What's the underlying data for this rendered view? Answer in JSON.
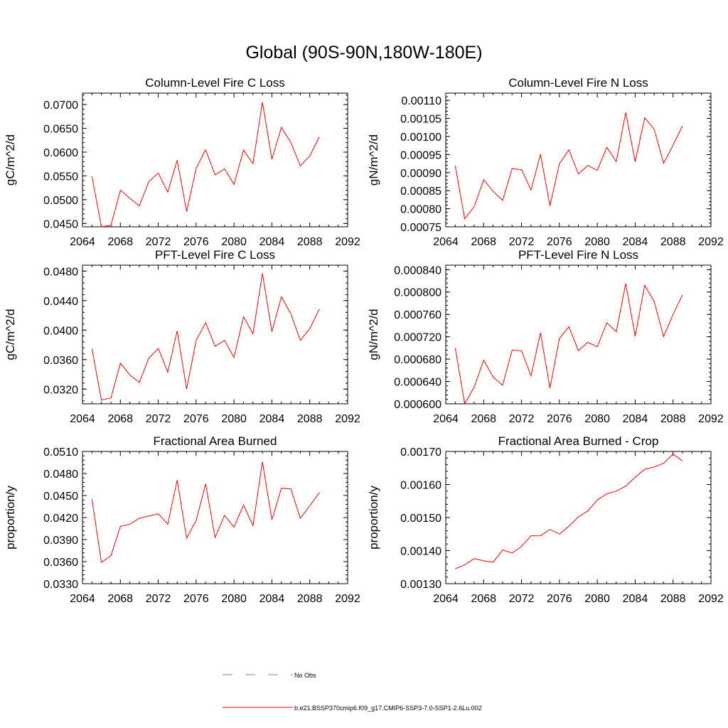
{
  "main_title": "Global (90S-90N,180W-180E)",
  "chart_data": [
    {
      "type": "line",
      "title": "Column-Level Fire C Loss",
      "xlabel": "",
      "ylabel": "gC/m^2/d",
      "xlim": [
        2064,
        2092
      ],
      "ylim": [
        0.0443,
        0.0724
      ],
      "xticks": [
        "2064",
        "2068",
        "2072",
        "2076",
        "2080",
        "2084",
        "2088",
        "2092"
      ],
      "yticks": [
        "0.0450",
        "0.0500",
        "0.0550",
        "0.0600",
        "0.0650",
        "0.0700"
      ],
      "x": [
        2065,
        2066,
        2067,
        2068,
        2069,
        2070,
        2071,
        2072,
        2073,
        2074,
        2075,
        2076,
        2077,
        2078,
        2079,
        2080,
        2081,
        2082,
        2083,
        2084,
        2085,
        2086,
        2087,
        2088,
        2089
      ],
      "series": [
        {
          "values": [
            0.0549,
            0.0443,
            0.0446,
            0.052,
            0.0503,
            0.0487,
            0.0538,
            0.0556,
            0.0516,
            0.0583,
            0.0475,
            0.0566,
            0.0605,
            0.0552,
            0.0565,
            0.0532,
            0.0604,
            0.0576,
            0.0705,
            0.0585,
            0.0652,
            0.062,
            0.0571,
            0.0592,
            0.0632
          ]
        }
      ]
    },
    {
      "type": "line",
      "title": "Column-Level Fire N Loss",
      "xlabel": "",
      "ylabel": "gN/m^2/d",
      "xlim": [
        2064,
        2092
      ],
      "ylim": [
        0.00075,
        0.00112
      ],
      "xticks": [
        "2064",
        "2068",
        "2072",
        "2076",
        "2080",
        "2084",
        "2088",
        "2092"
      ],
      "yticks": [
        "0.00075",
        "0.00080",
        "0.00085",
        "0.00090",
        "0.00095",
        "0.00100",
        "0.00105",
        "0.00110"
      ],
      "x": [
        2065,
        2066,
        2067,
        2068,
        2069,
        2070,
        2071,
        2072,
        2073,
        2074,
        2075,
        2076,
        2077,
        2078,
        2079,
        2080,
        2081,
        2082,
        2083,
        2084,
        2085,
        2086,
        2087,
        2088,
        2089
      ],
      "series": [
        {
          "values": [
            0.000919,
            0.000772,
            0.000806,
            0.00088,
            0.000848,
            0.000823,
            0.000911,
            0.000908,
            0.000852,
            0.000951,
            0.000808,
            0.000925,
            0.000963,
            0.000896,
            0.00092,
            0.000906,
            0.00097,
            0.00093,
            0.001066,
            0.00093,
            0.001052,
            0.00102,
            0.000926,
            0.000976,
            0.00103
          ]
        }
      ]
    },
    {
      "type": "line",
      "title": "PFT-Level Fire C Loss",
      "xlabel": "",
      "ylabel": "gC/m^2/d",
      "xlim": [
        2064,
        2092
      ],
      "ylim": [
        0.03,
        0.0488
      ],
      "xticks": [
        "2064",
        "2068",
        "2072",
        "2076",
        "2080",
        "2084",
        "2088",
        "2092"
      ],
      "yticks": [
        "0.0320",
        "0.0360",
        "0.0400",
        "0.0440",
        "0.0480"
      ],
      "x": [
        2065,
        2066,
        2067,
        2068,
        2069,
        2070,
        2071,
        2072,
        2073,
        2074,
        2075,
        2076,
        2077,
        2078,
        2079,
        2080,
        2081,
        2082,
        2083,
        2084,
        2085,
        2086,
        2087,
        2088,
        2089
      ],
      "series": [
        {
          "values": [
            0.0375,
            0.0305,
            0.0308,
            0.0355,
            0.0339,
            0.0329,
            0.0362,
            0.0375,
            0.0343,
            0.0399,
            0.032,
            0.0386,
            0.041,
            0.0378,
            0.0386,
            0.0363,
            0.0418,
            0.0395,
            0.0477,
            0.0398,
            0.0445,
            0.0422,
            0.0386,
            0.0402,
            0.0428
          ]
        }
      ]
    },
    {
      "type": "line",
      "title": "PFT-Level Fire N Loss",
      "xlabel": "",
      "ylabel": "gN/m^2/d",
      "xlim": [
        2064,
        2092
      ],
      "ylim": [
        0.0006,
        0.000848
      ],
      "xticks": [
        "2064",
        "2068",
        "2072",
        "2076",
        "2080",
        "2084",
        "2088",
        "2092"
      ],
      "yticks": [
        "0.000600",
        "0.000640",
        "0.000680",
        "0.000720",
        "0.000760",
        "0.000800",
        "0.000840"
      ],
      "x": [
        2065,
        2066,
        2067,
        2068,
        2069,
        2070,
        2071,
        2072,
        2073,
        2074,
        2075,
        2076,
        2077,
        2078,
        2079,
        2080,
        2081,
        2082,
        2083,
        2084,
        2085,
        2086,
        2087,
        2088,
        2089
      ],
      "series": [
        {
          "values": [
            0.0007,
            0.0006,
            0.00063,
            0.000678,
            0.000648,
            0.000633,
            0.000696,
            0.000695,
            0.00065,
            0.000727,
            0.000628,
            0.000717,
            0.000738,
            0.000695,
            0.00071,
            0.000702,
            0.000745,
            0.000729,
            0.000815,
            0.000721,
            0.000812,
            0.000783,
            0.00072,
            0.00076,
            0.000795
          ]
        }
      ]
    },
    {
      "type": "line",
      "title": "Fractional Area Burned",
      "xlabel": "",
      "ylabel": "proportion/y",
      "xlim": [
        2064,
        2092
      ],
      "ylim": [
        0.033,
        0.051
      ],
      "xticks": [
        "2064",
        "2068",
        "2072",
        "2076",
        "2080",
        "2084",
        "2088",
        "2092"
      ],
      "yticks": [
        "0.0330",
        "0.0360",
        "0.0390",
        "0.0420",
        "0.0450",
        "0.0480",
        "0.0510"
      ],
      "x": [
        2065,
        2066,
        2067,
        2068,
        2069,
        2070,
        2071,
        2072,
        2073,
        2074,
        2075,
        2076,
        2077,
        2078,
        2079,
        2080,
        2081,
        2082,
        2083,
        2084,
        2085,
        2086,
        2087,
        2088,
        2089
      ],
      "series": [
        {
          "values": [
            0.0445,
            0.0359,
            0.0368,
            0.0408,
            0.0411,
            0.0419,
            0.0422,
            0.0425,
            0.0411,
            0.0471,
            0.0392,
            0.0416,
            0.0466,
            0.0393,
            0.0423,
            0.0407,
            0.0437,
            0.0409,
            0.0496,
            0.0417,
            0.046,
            0.0459,
            0.0419,
            0.0436,
            0.0454
          ]
        }
      ]
    },
    {
      "type": "line",
      "title": "Fractional Area Burned - Crop",
      "xlabel": "",
      "ylabel": "proportion/y",
      "xlim": [
        2064,
        2092
      ],
      "ylim": [
        0.0013,
        0.0017
      ],
      "xticks": [
        "2064",
        "2068",
        "2072",
        "2076",
        "2080",
        "2084",
        "2088",
        "2092"
      ],
      "yticks": [
        "0.00130",
        "0.00140",
        "0.00150",
        "0.00160",
        "0.00170"
      ],
      "x": [
        2065,
        2066,
        2067,
        2068,
        2069,
        2070,
        2071,
        2072,
        2073,
        2074,
        2075,
        2076,
        2077,
        2078,
        2079,
        2080,
        2081,
        2082,
        2083,
        2084,
        2085,
        2086,
        2087,
        2088,
        2089
      ],
      "series": [
        {
          "values": [
            0.001345,
            0.001357,
            0.001376,
            0.001369,
            0.001365,
            0.001402,
            0.001393,
            0.001413,
            0.001445,
            0.001445,
            0.001464,
            0.00145,
            0.001474,
            0.001502,
            0.00152,
            0.001553,
            0.001572,
            0.00158,
            0.001595,
            0.001622,
            0.001646,
            0.001653,
            0.001664,
            0.001692,
            0.001671
          ]
        }
      ]
    }
  ],
  "legend": {
    "items": [
      {
        "label": "No Obs",
        "color": "#7b7bc8",
        "style": "dashed"
      },
      {
        "label": "b.e21.BSSP370cmip6.f09_g17.CMIP6-SSP3-7.0-SSP1-2.6Lu.002",
        "color": "#ff0000",
        "style": "solid"
      }
    ]
  },
  "colors": {
    "line": "#ff0000",
    "axis": "#000000",
    "obs": "#7b7bc8"
  }
}
